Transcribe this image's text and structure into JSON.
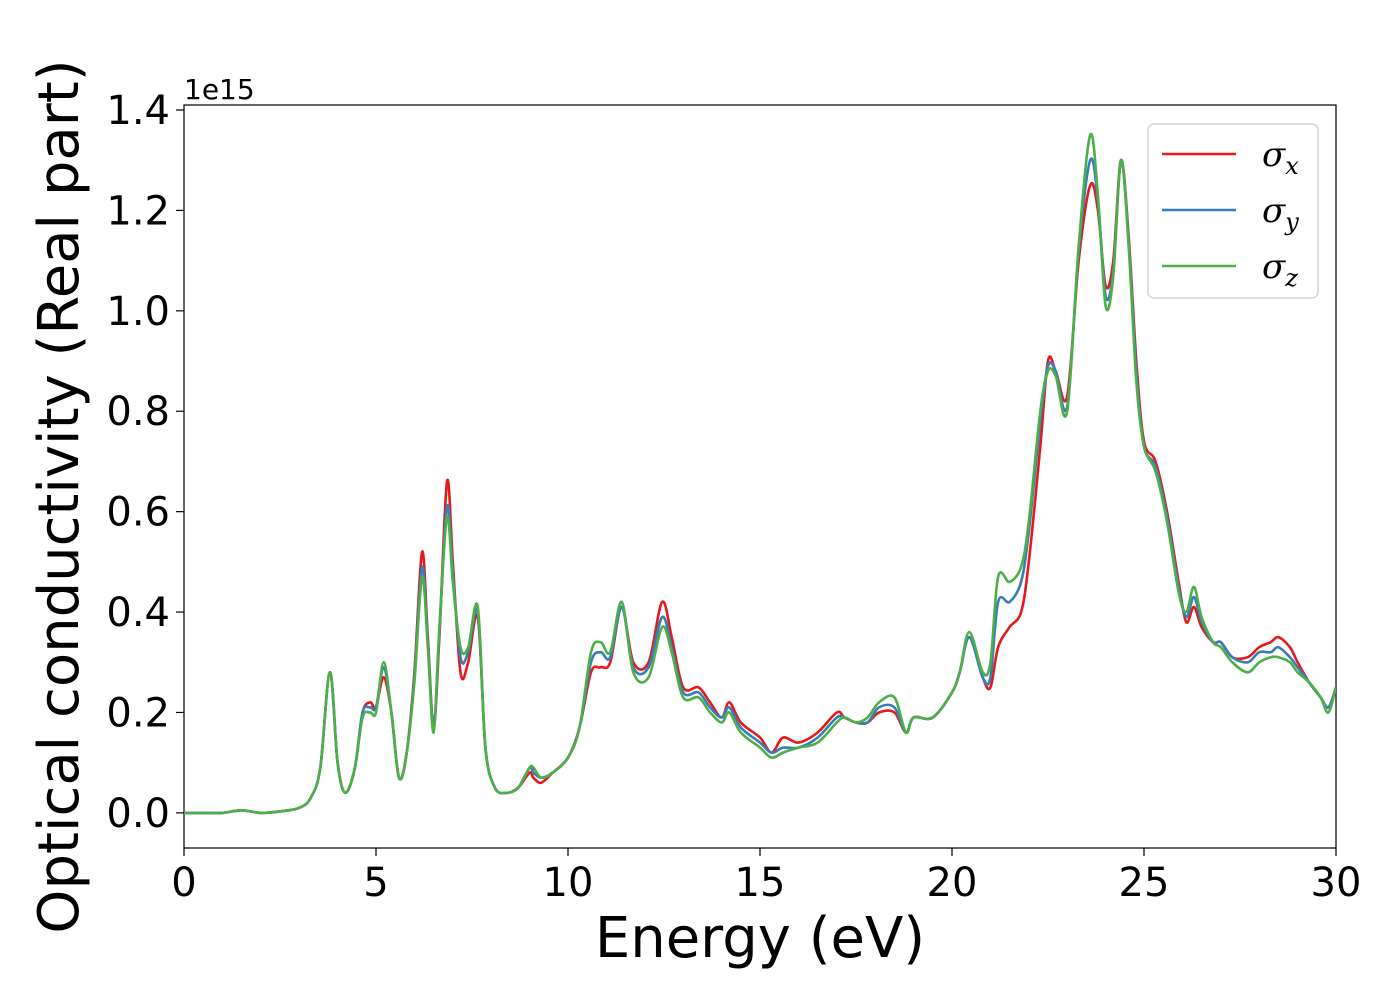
{
  "chart_data": {
    "type": "line",
    "xlabel": "Energy (eV)",
    "ylabel": "Optical conductivity (Real part)",
    "y_offset_text": "1e15",
    "xlim": [
      0,
      30
    ],
    "ylim": [
      -0.07,
      1.41
    ],
    "x_ticks": [
      "0",
      "5",
      "10",
      "15",
      "20",
      "25",
      "30"
    ],
    "y_ticks": [
      "0.0",
      "0.2",
      "0.4",
      "0.6",
      "0.8",
      "1.0",
      "1.2",
      "1.4"
    ],
    "legend_position": "top-right",
    "grid": false,
    "x": [
      0,
      0.5,
      1,
      1.5,
      2,
      2.5,
      3,
      3.3,
      3.55,
      3.8,
      4.0,
      4.2,
      4.45,
      4.65,
      4.85,
      5.0,
      5.2,
      5.4,
      5.6,
      5.8,
      6.0,
      6.2,
      6.35,
      6.5,
      6.65,
      6.85,
      7.0,
      7.2,
      7.4,
      7.65,
      7.85,
      8.1,
      8.4,
      8.7,
      9.0,
      9.1,
      9.3,
      9.6,
      10.0,
      10.3,
      10.6,
      10.85,
      11.1,
      11.4,
      11.7,
      12.1,
      12.45,
      12.7,
      13.0,
      13.4,
      13.7,
      14.0,
      14.2,
      14.5,
      15.0,
      15.3,
      15.6,
      16.0,
      16.5,
      17.0,
      17.2,
      17.5,
      17.8,
      18.1,
      18.5,
      18.8,
      19.0,
      19.5,
      20.0,
      20.2,
      20.45,
      20.8,
      21.0,
      21.2,
      21.5,
      21.8,
      22.0,
      22.3,
      22.5,
      22.7,
      23.0,
      23.3,
      23.6,
      23.8,
      24.0,
      24.2,
      24.4,
      24.6,
      24.8,
      25.0,
      25.3,
      25.6,
      25.9,
      26.1,
      26.3,
      26.5,
      26.8,
      27.0,
      27.3,
      27.7,
      28.0,
      28.3,
      28.5,
      28.8,
      29.0,
      29.3,
      29.6,
      29.8,
      30.0
    ],
    "series": [
      {
        "name": "σx",
        "color": "#e41a1c",
        "values": [
          0.0,
          0.0,
          0.0,
          0.005,
          0.0,
          0.003,
          0.01,
          0.03,
          0.09,
          0.28,
          0.1,
          0.04,
          0.09,
          0.2,
          0.22,
          0.21,
          0.27,
          0.2,
          0.07,
          0.12,
          0.28,
          0.52,
          0.35,
          0.17,
          0.35,
          0.66,
          0.5,
          0.28,
          0.3,
          0.39,
          0.13,
          0.05,
          0.04,
          0.05,
          0.08,
          0.07,
          0.06,
          0.08,
          0.11,
          0.17,
          0.28,
          0.29,
          0.3,
          0.41,
          0.3,
          0.3,
          0.42,
          0.35,
          0.25,
          0.25,
          0.22,
          0.19,
          0.22,
          0.18,
          0.15,
          0.12,
          0.15,
          0.14,
          0.16,
          0.2,
          0.19,
          0.18,
          0.18,
          0.2,
          0.2,
          0.16,
          0.19,
          0.19,
          0.24,
          0.28,
          0.35,
          0.27,
          0.25,
          0.33,
          0.37,
          0.4,
          0.5,
          0.73,
          0.9,
          0.88,
          0.83,
          1.1,
          1.25,
          1.2,
          1.05,
          1.1,
          1.3,
          1.15,
          0.9,
          0.74,
          0.7,
          0.6,
          0.46,
          0.38,
          0.41,
          0.37,
          0.34,
          0.34,
          0.31,
          0.31,
          0.33,
          0.34,
          0.35,
          0.33,
          0.3,
          0.26,
          0.23,
          0.21,
          0.25
        ]
      },
      {
        "name": "σy",
        "color": "#377eb8",
        "values": [
          0.0,
          0.0,
          0.0,
          0.005,
          0.0,
          0.003,
          0.01,
          0.03,
          0.09,
          0.28,
          0.1,
          0.04,
          0.09,
          0.2,
          0.21,
          0.21,
          0.29,
          0.2,
          0.07,
          0.12,
          0.27,
          0.49,
          0.34,
          0.17,
          0.36,
          0.61,
          0.48,
          0.31,
          0.32,
          0.4,
          0.13,
          0.05,
          0.04,
          0.05,
          0.09,
          0.08,
          0.07,
          0.08,
          0.11,
          0.17,
          0.3,
          0.32,
          0.31,
          0.41,
          0.29,
          0.29,
          0.39,
          0.33,
          0.24,
          0.24,
          0.21,
          0.19,
          0.21,
          0.17,
          0.14,
          0.12,
          0.13,
          0.13,
          0.15,
          0.19,
          0.19,
          0.18,
          0.18,
          0.21,
          0.21,
          0.16,
          0.19,
          0.19,
          0.24,
          0.28,
          0.35,
          0.27,
          0.27,
          0.42,
          0.42,
          0.46,
          0.56,
          0.78,
          0.89,
          0.88,
          0.81,
          1.12,
          1.3,
          1.22,
          1.03,
          1.08,
          1.3,
          1.14,
          0.88,
          0.73,
          0.69,
          0.59,
          0.45,
          0.39,
          0.43,
          0.38,
          0.34,
          0.34,
          0.31,
          0.3,
          0.32,
          0.32,
          0.33,
          0.31,
          0.29,
          0.26,
          0.23,
          0.21,
          0.25
        ]
      },
      {
        "name": "σz",
        "color": "#4daf4a",
        "values": [
          0.0,
          0.0,
          0.0,
          0.005,
          0.0,
          0.003,
          0.01,
          0.03,
          0.09,
          0.28,
          0.1,
          0.04,
          0.09,
          0.19,
          0.2,
          0.2,
          0.3,
          0.2,
          0.07,
          0.12,
          0.26,
          0.47,
          0.33,
          0.16,
          0.37,
          0.59,
          0.46,
          0.33,
          0.33,
          0.41,
          0.13,
          0.05,
          0.04,
          0.05,
          0.09,
          0.09,
          0.07,
          0.08,
          0.11,
          0.17,
          0.32,
          0.34,
          0.32,
          0.42,
          0.28,
          0.27,
          0.37,
          0.32,
          0.23,
          0.23,
          0.2,
          0.18,
          0.2,
          0.16,
          0.13,
          0.11,
          0.12,
          0.13,
          0.14,
          0.18,
          0.19,
          0.18,
          0.19,
          0.22,
          0.23,
          0.16,
          0.19,
          0.19,
          0.24,
          0.28,
          0.36,
          0.28,
          0.3,
          0.47,
          0.46,
          0.49,
          0.58,
          0.8,
          0.88,
          0.87,
          0.8,
          1.13,
          1.35,
          1.23,
          1.01,
          1.07,
          1.3,
          1.13,
          0.86,
          0.73,
          0.68,
          0.58,
          0.44,
          0.4,
          0.45,
          0.39,
          0.34,
          0.33,
          0.3,
          0.28,
          0.3,
          0.31,
          0.31,
          0.3,
          0.28,
          0.26,
          0.23,
          0.2,
          0.25
        ]
      }
    ]
  }
}
